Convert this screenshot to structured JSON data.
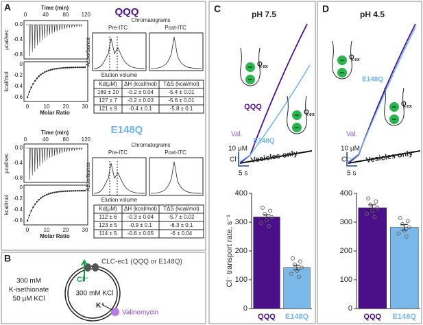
{
  "panel_A": {
    "label": "A",
    "sections": [
      {
        "title": "QQQ",
        "itc": {
          "time_label": "Time (min)",
          "time_ticks": [
            "0",
            "40",
            "80",
            "120"
          ],
          "top_ylabel": "µcal/sec",
          "top_yticks": [
            "0.0",
            "-0.4",
            "-0.8"
          ],
          "bottom_ylabel": "kcal/mol",
          "bottom_yticks": [
            "0",
            "-0.2",
            "-0.4",
            "-0.6"
          ],
          "x_label": "Molar Ratio",
          "x_ticks": [
            "0",
            "10",
            "20",
            "30"
          ]
        },
        "chromatograms": {
          "title": "Chromatograms",
          "pre": "Pre-ITC",
          "post": "Post-ITC",
          "ylabel": "Absorbance",
          "xlabel": "Elution volume"
        },
        "table": {
          "header": [
            "Kd(µM)",
            "ΔH (kcal/mol)",
            "TΔS (kcal/mol)"
          ],
          "rows": [
            [
              "169 ± 20",
              "-0.2 ± 0.04",
              "-5.4 ± 0.01"
            ],
            [
              "127 ± 7",
              "-0.2 ± 0.03",
              "-5.6 ± 0.01"
            ],
            [
              "121 ± 9",
              "-0.4 ± 0.1",
              "-5.8 ± 0.1"
            ]
          ]
        }
      },
      {
        "title": "E148Q",
        "itc": {
          "time_label": "Time (min)",
          "time_ticks": [
            "0",
            "40",
            "80",
            "120"
          ],
          "top_ylabel": "µcal/sec",
          "top_yticks": [
            "0.0",
            "-0.4",
            "-0.8"
          ],
          "bottom_ylabel": "kcal/mol",
          "bottom_yticks": [
            "0",
            "-0.2",
            "-0.4",
            "-0.6"
          ],
          "x_label": "Molar Ratio",
          "x_ticks": [
            "0",
            "10",
            "20",
            "30"
          ]
        },
        "chromatograms": {
          "title": "Chromatograms",
          "pre": "Pre-ITC",
          "post": "Post-ITC",
          "ylabel": "Absorbance",
          "xlabel": "Elution volume"
        },
        "table": {
          "header": [
            "Kd(µM)",
            "ΔH (kcal/mol)",
            "TΔS (kcal/mol)"
          ],
          "rows": [
            [
              "112 ± 6",
              "-0.3 ± 0.04",
              "-5.7 ± 0.02"
            ],
            [
              "123 ± 5",
              "-0.9 ± 0.1",
              "-6.3 ± 0.1"
            ],
            [
              "114 ± 5",
              "-0.6 ± 0.05",
              "-6 ± 0.04"
            ]
          ]
        }
      }
    ]
  },
  "panel_B": {
    "label": "B",
    "protein": "CLC-ec1 (QQQ or E148Q)",
    "outside": [
      "300 mM",
      "K-isethionate",
      "50 µM KCl"
    ],
    "inside": "300 mM KCl",
    "cl": "Cl⁻",
    "k": "K⁺",
    "ionophore": "Valinomycin"
  },
  "panels_CD": [
    {
      "label": "C",
      "title": "pH 7.5",
      "traces": {
        "val": "Val.",
        "scale_y": "10 µM",
        "scale_ion": "Cl⁻",
        "scale_x": "5 s",
        "baseline": "Vesicles only",
        "series": [
          "QQQ",
          "E148Q"
        ],
        "q": "Q",
        "q_sub": "ex"
      },
      "bar_chart": {
        "ylabel": "Cl⁻ transport rate, s⁻¹",
        "categories": [
          "QQQ",
          "E148Q"
        ],
        "values": [
          318,
          142
        ],
        "errors": [
          8,
          8
        ],
        "colors": [
          "#4b0f8a",
          "#7ab8ea"
        ],
        "ylim": [
          0,
          400
        ],
        "yticks": [
          0,
          100,
          200,
          300,
          400
        ]
      }
    },
    {
      "label": "D",
      "title": "pH 4.5",
      "traces": {
        "val": "Val.",
        "scale_y": "10 µM",
        "scale_ion": "Cl⁻",
        "scale_x": "5 s",
        "baseline": "Vesicles only",
        "series": [
          "E148Q"
        ],
        "q": "Q",
        "q_sub": "ex"
      },
      "bar_chart": {
        "categories": [
          "QQQ",
          "E148Q"
        ],
        "values": [
          350,
          282
        ],
        "errors": [
          10,
          10
        ],
        "colors": [
          "#4b0f8a",
          "#7ab8ea"
        ],
        "ylim": [
          0,
          400
        ],
        "yticks": [
          0,
          100,
          200,
          300,
          400
        ]
      }
    }
  ]
}
